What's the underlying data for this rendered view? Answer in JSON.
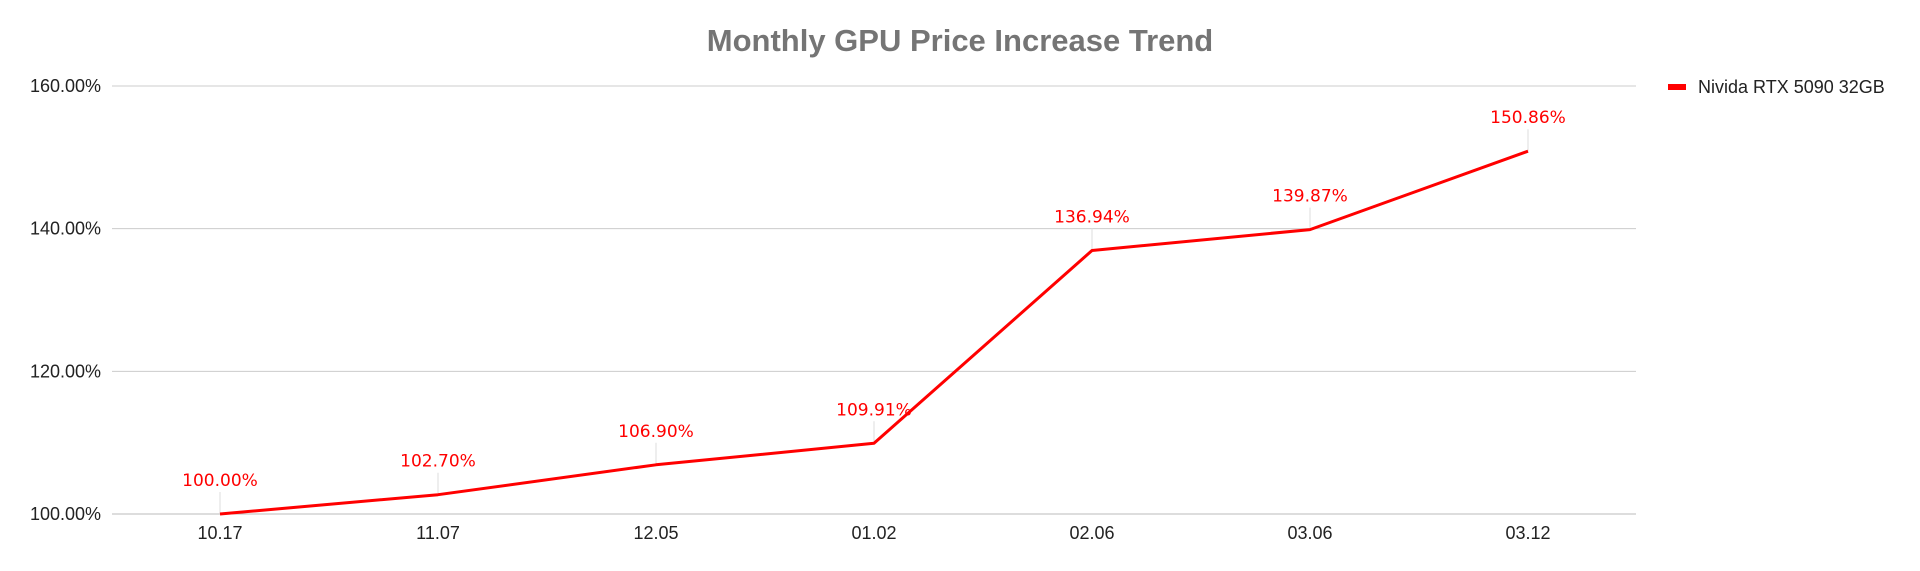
{
  "chart_data": {
    "type": "line",
    "title": "Monthly GPU Price Increase Trend",
    "xlabel": "",
    "ylabel": "",
    "categories": [
      "10.17",
      "11.07",
      "12.05",
      "01.02",
      "02.06",
      "03.06",
      "03.12"
    ],
    "series": [
      {
        "name": "Nivida RTX 5090 32GB",
        "values": [
          100.0,
          102.7,
          106.9,
          109.91,
          136.94,
          139.87,
          150.86
        ],
        "labels": [
          "100.00%",
          "102.70%",
          "106.90%",
          "109.91%",
          "136.94%",
          "139.87%",
          "150.86%"
        ],
        "color": "#ff0000"
      }
    ],
    "ylim": [
      100,
      160
    ],
    "yticks": [
      100,
      120,
      140,
      160
    ],
    "ytick_labels": [
      "100.00%",
      "120.00%",
      "140.00%",
      "160.00%"
    ],
    "grid": true,
    "legend_position": "right"
  }
}
